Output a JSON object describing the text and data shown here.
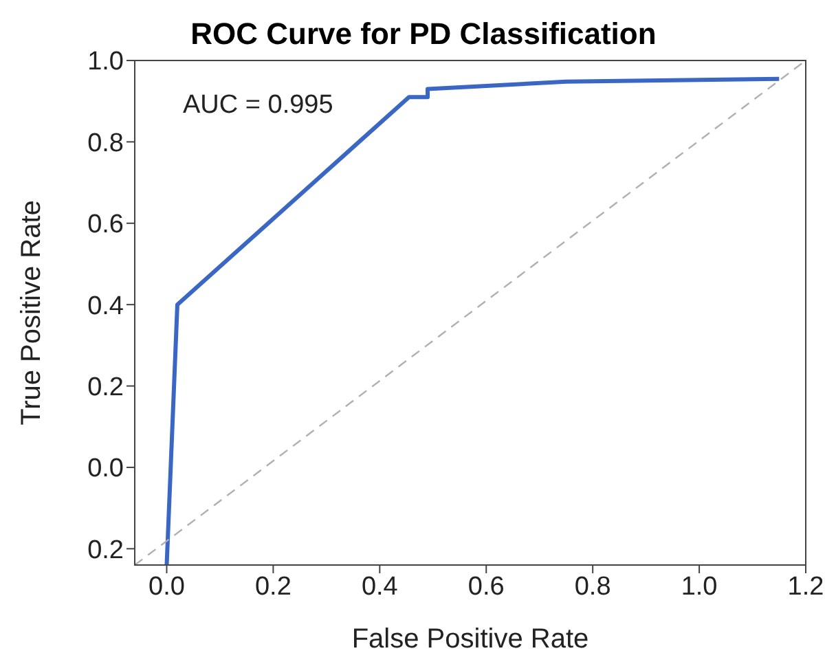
{
  "chart_data": {
    "type": "line",
    "title": "ROC Curve for PD Classification",
    "xlabel": "False Positive Rate",
    "ylabel": "True Positive Rate",
    "annotations": [
      "AUC = 0.995"
    ],
    "xlim": [
      -0.06,
      1.2
    ],
    "xticks": [
      {
        "value": 0,
        "label": "0.0"
      },
      0.2,
      0.4,
      0.6,
      0.8,
      {
        "value": 1,
        "label": "1.0"
      },
      1.2
    ],
    "ylim": [
      -0.24,
      1.0
    ],
    "yticks": [
      {
        "value": -0.2,
        "label": "0.2"
      },
      {
        "value": 0.0,
        "label": "0.0"
      },
      {
        "value": 0.2,
        "label": "0.2"
      },
      {
        "value": 0.4,
        "label": "0.4"
      },
      {
        "value": 0.6,
        "label": "0.6"
      },
      {
        "value": 0.8,
        "label": "0.8"
      },
      {
        "value": 1.0,
        "label": "1.0"
      }
    ],
    "grid": false,
    "marker": "none",
    "series": [
      {
        "color": "#3a66c4",
        "line_style": "solid",
        "x": [
          0.0,
          0.02,
          0.455,
          0.49,
          0.49,
          0.75,
          1.15
        ],
        "values": [
          -0.24,
          0.4,
          0.91,
          0.91,
          0.93,
          0.948,
          0.955
        ]
      },
      {
        "color": "#b0b0b0",
        "line_style": "dashed",
        "x": [
          -0.06,
          1.2
        ],
        "values": [
          -0.24,
          1.0
        ]
      }
    ]
  }
}
